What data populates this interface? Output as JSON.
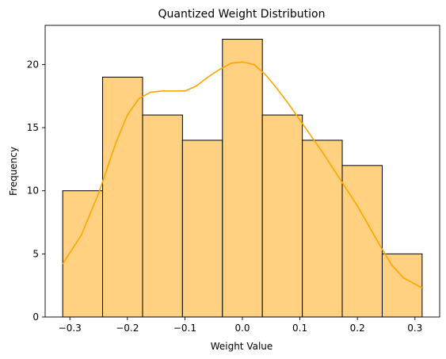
{
  "chart_data": {
    "type": "bar",
    "title": "Quantized Weight Distribution",
    "xlabel": "Weight Value",
    "ylabel": "Frequency",
    "bin_edges": [
      -0.3125,
      -0.2431,
      -0.1736,
      -0.1042,
      -0.0347,
      0.0347,
      0.1042,
      0.1736,
      0.2431,
      0.3125
    ],
    "values": [
      10,
      19,
      16,
      14,
      22,
      16,
      14,
      12,
      5
    ],
    "xlim": [
      -0.343,
      0.343
    ],
    "ylim": [
      0,
      23.1
    ],
    "xticks": [
      -0.3,
      -0.2,
      -0.1,
      0.0,
      0.1,
      0.2,
      0.3
    ],
    "xtick_labels": [
      "−0.3",
      "−0.2",
      "−0.1",
      "0.0",
      "0.1",
      "0.2",
      "0.3"
    ],
    "yticks": [
      0,
      5,
      10,
      15,
      20
    ],
    "ytick_labels": [
      "0",
      "5",
      "10",
      "15",
      "20"
    ],
    "kde": {
      "x": [
        -0.3125,
        -0.28,
        -0.25,
        -0.22,
        -0.2,
        -0.18,
        -0.16,
        -0.14,
        -0.12,
        -0.1,
        -0.08,
        -0.06,
        -0.04,
        -0.02,
        0.0,
        0.02,
        0.04,
        0.06,
        0.08,
        0.1,
        0.12,
        0.14,
        0.16,
        0.18,
        0.2,
        0.22,
        0.24,
        0.26,
        0.28,
        0.3125
      ],
      "y": [
        4.2,
        6.5,
        9.8,
        13.8,
        16.0,
        17.3,
        17.8,
        17.9,
        17.9,
        17.9,
        18.3,
        19.0,
        19.6,
        20.1,
        20.2,
        20.0,
        19.2,
        18.1,
        16.9,
        15.6,
        14.3,
        13.0,
        11.6,
        10.2,
        8.8,
        7.2,
        5.6,
        4.1,
        3.1,
        2.3
      ]
    },
    "colors": {
      "bar_fill": "#ffd180",
      "bar_edge": "#000000",
      "kde_line": "#ffa500"
    },
    "grid": false,
    "legend": "none"
  }
}
